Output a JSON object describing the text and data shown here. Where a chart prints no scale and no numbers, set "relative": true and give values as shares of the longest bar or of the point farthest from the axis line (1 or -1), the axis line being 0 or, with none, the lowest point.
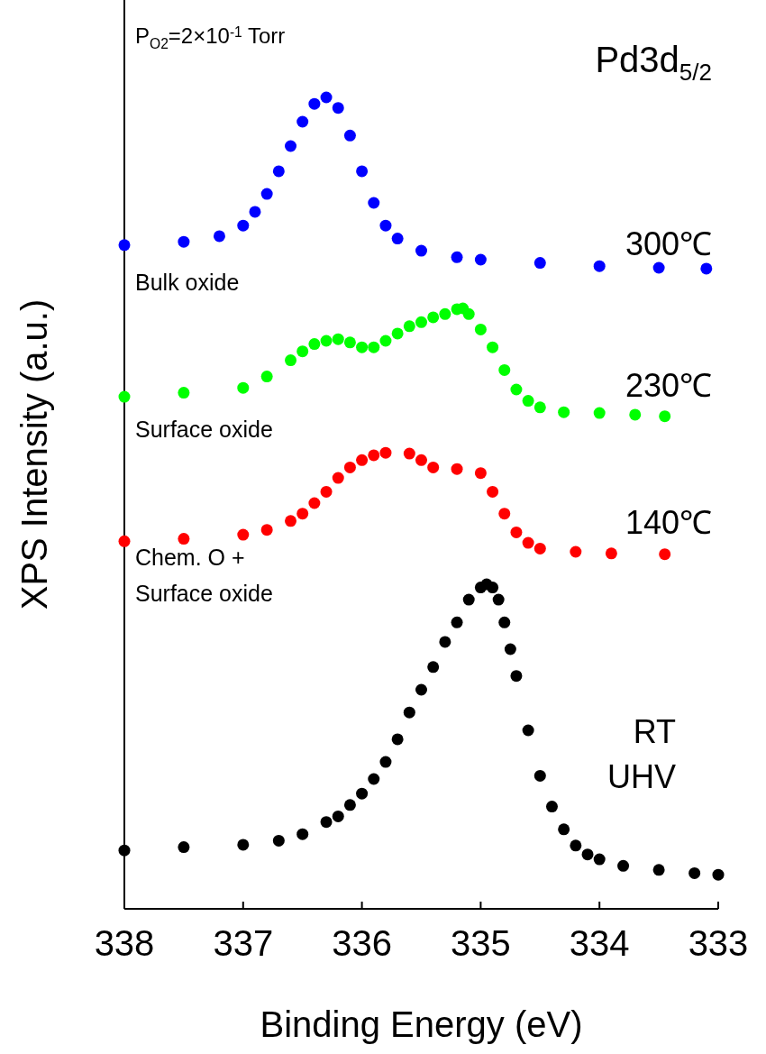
{
  "chart_data": {
    "type": "scatter",
    "relative": true,
    "xlabel": "Binding Energy (eV)",
    "ylabel": "XPS Intensity (a.u.)",
    "xlim": [
      338,
      333
    ],
    "xticks": [
      338,
      337,
      336,
      335,
      334,
      333
    ],
    "tick_labels": "x",
    "marker": "circle",
    "annotations": [
      "P$_{O2}$=2×10$^{-1}$ Torr",
      "Pd3d$_{5/2}$",
      "Bulk oxide",
      "Surface oxide",
      "Chem. O + Surface oxide"
    ],
    "series": [
      {
        "name": "300℃",
        "color": "#0000ff",
        "x": [
          338,
          337.5,
          337.2,
          337,
          336.9,
          336.8,
          336.7,
          336.6,
          336.5,
          336.4,
          336.3,
          336.2,
          336.1,
          336,
          335.9,
          335.8,
          335.7,
          335.5,
          335.2,
          335,
          334.5,
          334,
          333.5,
          333.1
        ],
        "values": [
          0.818,
          0.822,
          0.829,
          0.842,
          0.859,
          0.881,
          0.909,
          0.94,
          0.97,
          0.992,
          1,
          0.987,
          0.953,
          0.909,
          0.87,
          0.842,
          0.826,
          0.811,
          0.803,
          0.8,
          0.796,
          0.792,
          0.79,
          0.789
        ]
      },
      {
        "name": "230℃",
        "color": "#00ff00",
        "x": [
          338,
          337.5,
          337,
          336.8,
          336.6,
          336.5,
          336.4,
          336.3,
          336.2,
          336.1,
          336,
          335.9,
          335.8,
          335.7,
          335.6,
          335.5,
          335.4,
          335.3,
          335.2,
          335.15,
          335.1,
          335,
          334.9,
          334.8,
          334.7,
          334.6,
          334.5,
          334.3,
          334,
          333.7,
          333.45
        ],
        "values": [
          0.631,
          0.636,
          0.642,
          0.656,
          0.676,
          0.687,
          0.696,
          0.7,
          0.702,
          0.698,
          0.692,
          0.692,
          0.7,
          0.709,
          0.718,
          0.723,
          0.729,
          0.733,
          0.739,
          0.74,
          0.733,
          0.714,
          0.692,
          0.664,
          0.64,
          0.626,
          0.618,
          0.612,
          0.611,
          0.609,
          0.607
        ]
      },
      {
        "name": "140℃",
        "color": "#ff0000",
        "x": [
          338,
          337.5,
          337,
          336.8,
          336.6,
          336.5,
          336.4,
          336.3,
          336.2,
          336.1,
          336,
          335.9,
          335.8,
          335.6,
          335.5,
          335.4,
          335.2,
          335,
          334.9,
          334.8,
          334.7,
          334.6,
          334.5,
          334.2,
          333.9,
          333.45
        ],
        "values": [
          0.453,
          0.456,
          0.461,
          0.467,
          0.478,
          0.487,
          0.5,
          0.514,
          0.531,
          0.544,
          0.553,
          0.559,
          0.562,
          0.561,
          0.553,
          0.544,
          0.542,
          0.537,
          0.514,
          0.487,
          0.464,
          0.451,
          0.444,
          0.44,
          0.438,
          0.437
        ]
      },
      {
        "name": "RT UHV",
        "color": "#000000",
        "x": [
          338,
          337.5,
          337,
          336.7,
          336.5,
          336.3,
          336.2,
          336.1,
          336,
          335.9,
          335.8,
          335.7,
          335.6,
          335.5,
          335.4,
          335.3,
          335.2,
          335.1,
          335,
          334.95,
          334.9,
          334.85,
          334.8,
          334.75,
          334.7,
          334.6,
          334.5,
          334.4,
          334.3,
          334.2,
          334.1,
          334,
          333.8,
          333.5,
          333.2,
          333
        ],
        "values": [
          0.072,
          0.076,
          0.079,
          0.084,
          0.092,
          0.107,
          0.114,
          0.128,
          0.142,
          0.16,
          0.181,
          0.209,
          0.242,
          0.27,
          0.298,
          0.329,
          0.353,
          0.381,
          0.396,
          0.4,
          0.396,
          0.381,
          0.353,
          0.32,
          0.287,
          0.22,
          0.164,
          0.126,
          0.098,
          0.078,
          0.067,
          0.061,
          0.053,
          0.048,
          0.044,
          0.042
        ]
      }
    ]
  }
}
